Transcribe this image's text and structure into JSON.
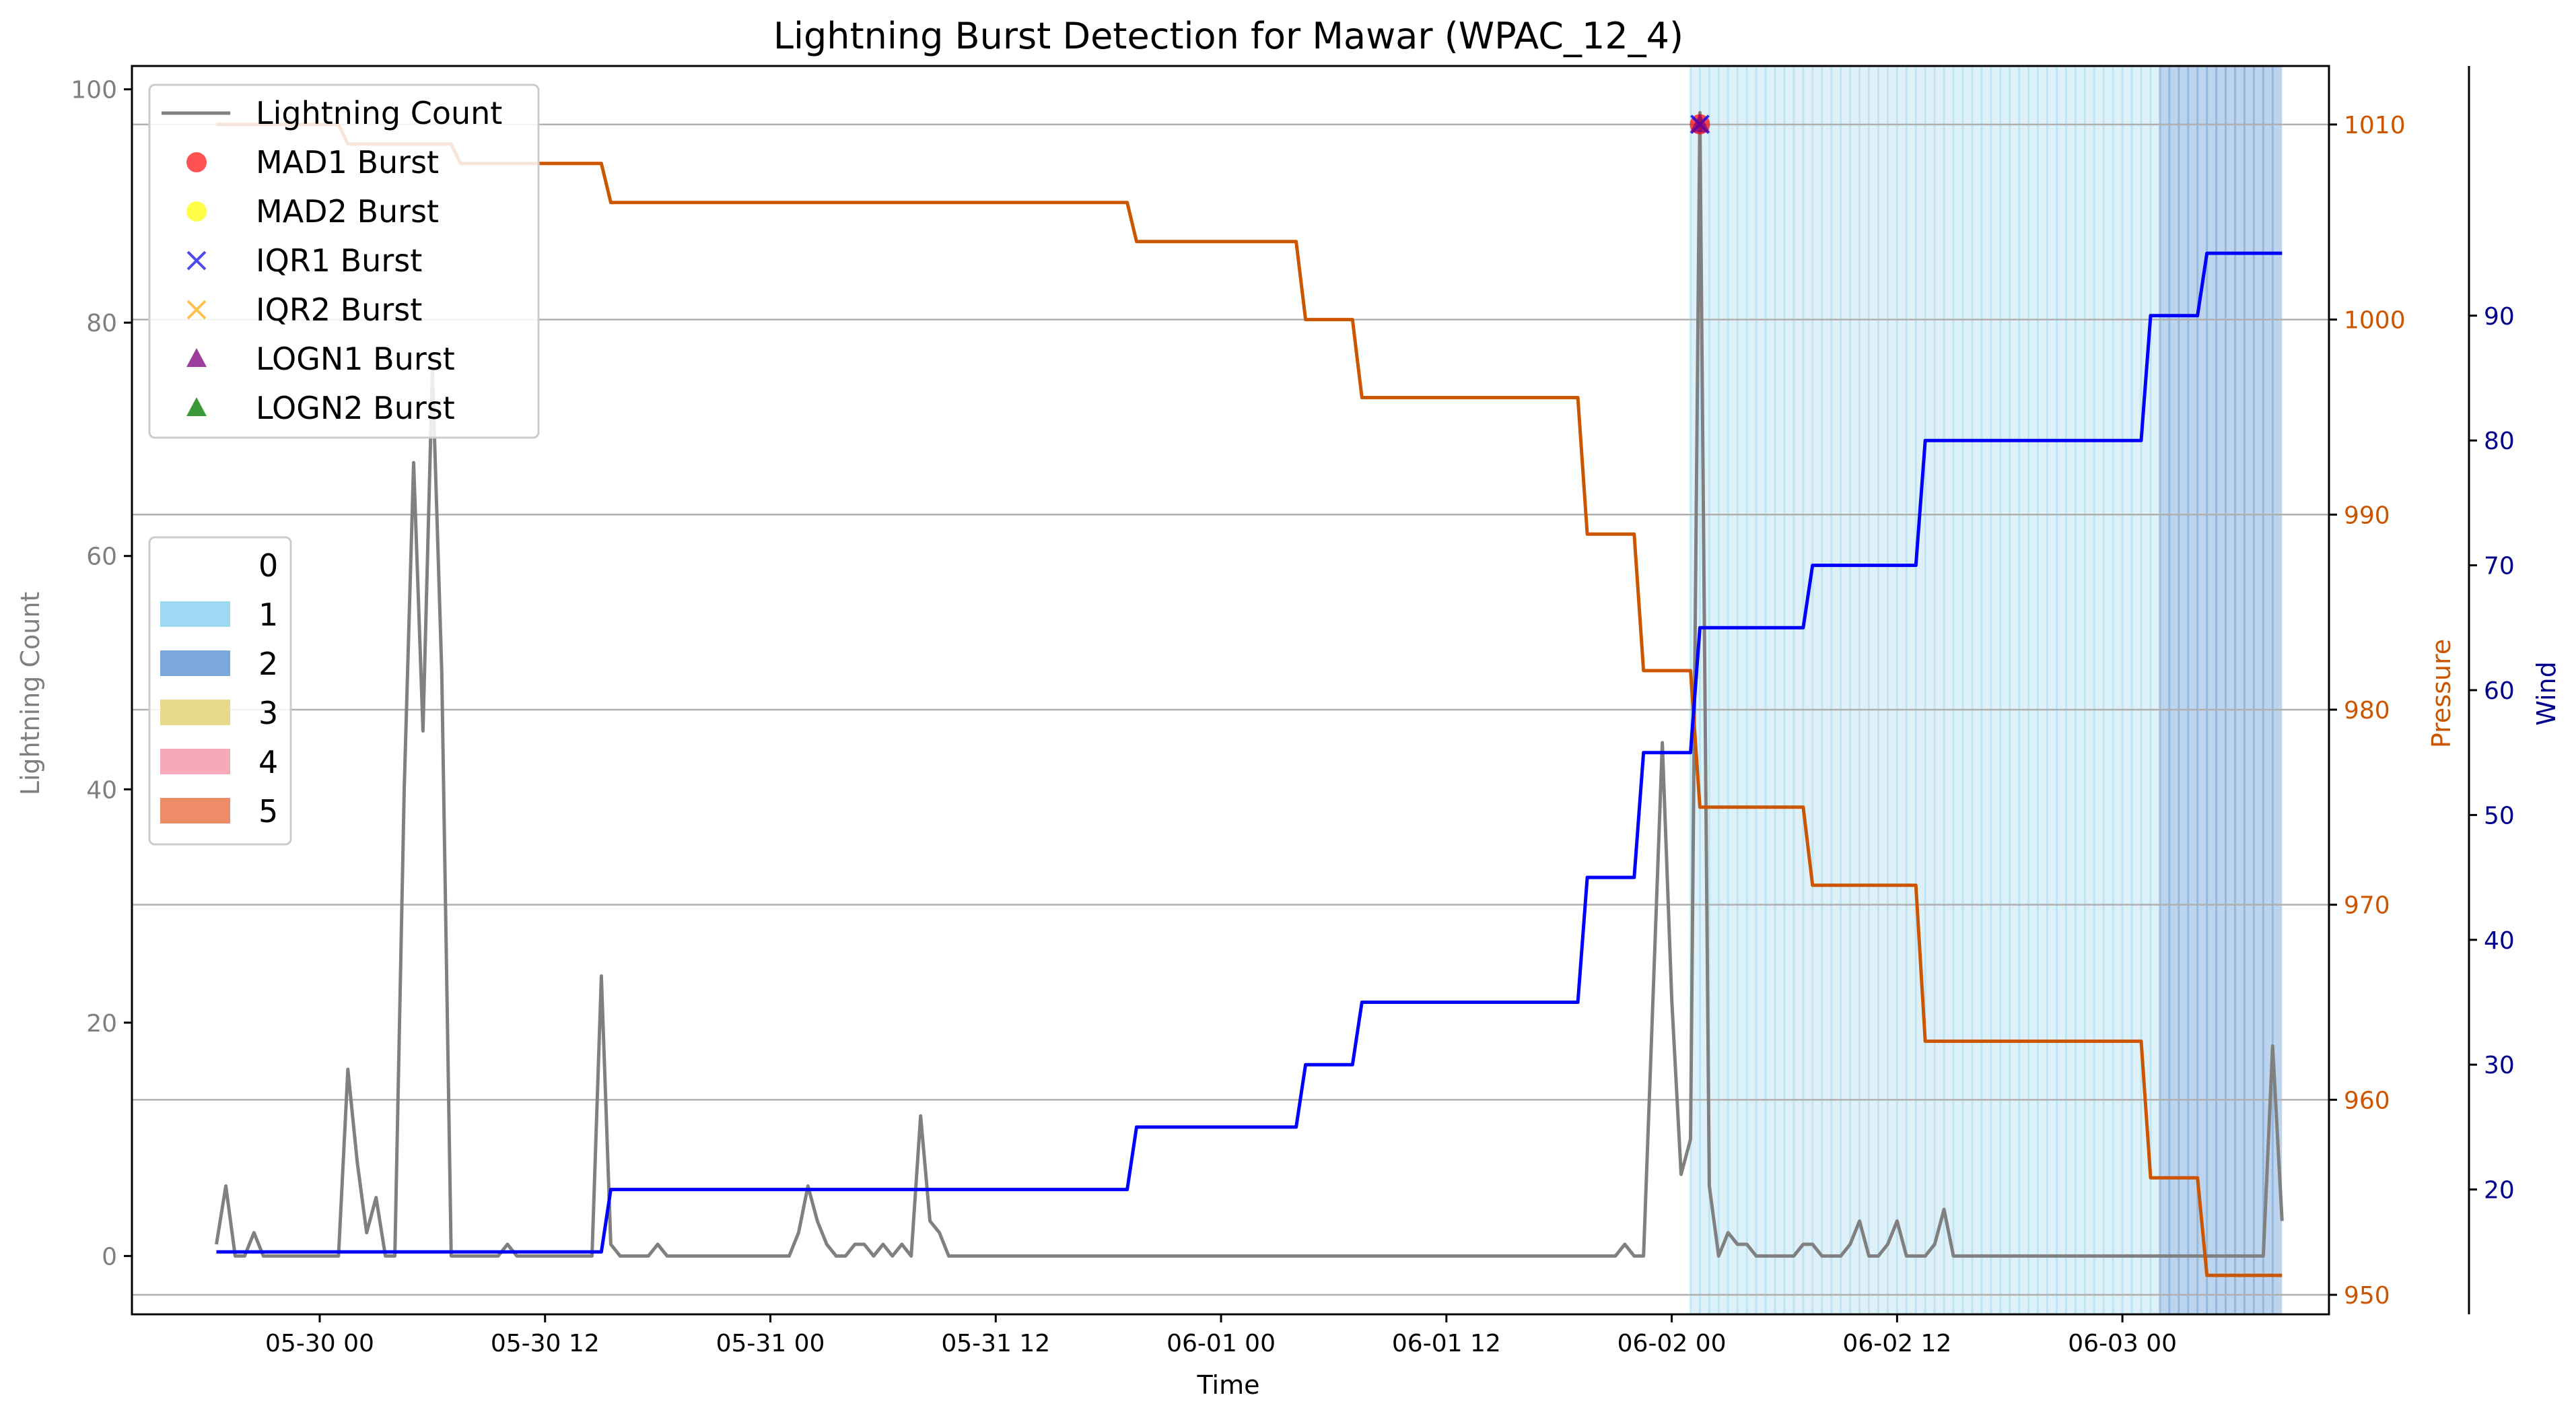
{
  "chart_data": {
    "type": "line",
    "title": "Lightning Burst Detection for Mawar (WPAC_12_4)",
    "xlabel": "Time",
    "x_ticks": [
      "05-30 00",
      "05-30 12",
      "05-31 00",
      "05-31 12",
      "06-01 00",
      "06-01 12",
      "06-02 00",
      "06-02 12",
      "06-03 00"
    ],
    "axes": {
      "left": {
        "label": "Lightning Count",
        "ticks": [
          0,
          20,
          40,
          60,
          80,
          100
        ],
        "ylim": [
          -5,
          102
        ],
        "color": "#7f7f7f"
      },
      "right1": {
        "label": "Pressure",
        "ticks": [
          950,
          960,
          970,
          980,
          990,
          1000,
          1010
        ],
        "ylim": [
          949,
          1013
        ],
        "color": "#cc5500"
      },
      "right2": {
        "label": "Wind",
        "ticks": [
          20,
          30,
          40,
          50,
          60,
          70,
          80,
          90
        ],
        "ylim": [
          10,
          110
        ],
        "color": "#00008b"
      }
    },
    "grid": true,
    "x_unit": "hours since 05-30 00",
    "xlim": [
      -10,
      107
    ],
    "series": [
      {
        "name": "Lightning Count",
        "axis": "left",
        "color": "#808080",
        "points": [
          [
            -5.5,
            1
          ],
          [
            -5,
            6
          ],
          [
            -4.5,
            0
          ],
          [
            -4,
            0
          ],
          [
            -3.5,
            2
          ],
          [
            -3,
            0
          ],
          [
            1,
            0
          ],
          [
            1.5,
            16
          ],
          [
            2,
            8
          ],
          [
            2.5,
            2
          ],
          [
            3,
            5
          ],
          [
            3.5,
            0
          ],
          [
            4,
            0
          ],
          [
            4.5,
            40
          ],
          [
            5,
            68
          ],
          [
            5.5,
            45
          ],
          [
            6,
            76
          ],
          [
            6.5,
            50
          ],
          [
            7,
            0
          ],
          [
            9,
            0
          ],
          [
            9.5,
            0
          ],
          [
            10,
            1
          ],
          [
            10.5,
            0
          ],
          [
            14,
            0
          ],
          [
            14.5,
            0
          ],
          [
            15,
            24
          ],
          [
            15.5,
            1
          ],
          [
            16,
            0
          ],
          [
            17.5,
            0
          ],
          [
            18,
            1
          ],
          [
            18.5,
            0
          ],
          [
            25,
            0
          ],
          [
            25.5,
            2
          ],
          [
            26,
            6
          ],
          [
            26.5,
            3
          ],
          [
            27,
            1
          ],
          [
            27.5,
            0
          ],
          [
            28,
            0
          ],
          [
            28.5,
            1
          ],
          [
            29,
            1
          ],
          [
            29.5,
            0
          ],
          [
            30,
            1
          ],
          [
            30.5,
            0
          ],
          [
            31,
            1
          ],
          [
            31.5,
            0
          ],
          [
            32,
            12
          ],
          [
            32.5,
            3
          ],
          [
            33,
            2
          ],
          [
            33.5,
            0
          ],
          [
            51,
            0
          ],
          [
            69,
            0
          ],
          [
            69.5,
            1
          ],
          [
            70,
            0
          ],
          [
            70.5,
            0
          ],
          [
            71,
            22
          ],
          [
            71.5,
            44
          ],
          [
            72,
            22
          ],
          [
            72.5,
            7
          ],
          [
            73,
            10
          ],
          [
            73.5,
            98
          ],
          [
            74,
            6
          ],
          [
            74.5,
            0
          ],
          [
            75,
            2
          ],
          [
            75.5,
            1
          ],
          [
            76,
            1
          ],
          [
            76.5,
            0
          ],
          [
            78.5,
            0
          ],
          [
            79,
            1
          ],
          [
            79.5,
            1
          ],
          [
            80,
            0
          ],
          [
            81,
            0
          ],
          [
            81.5,
            1
          ],
          [
            82,
            3
          ],
          [
            82.5,
            0
          ],
          [
            83,
            0
          ],
          [
            83.5,
            1
          ],
          [
            84,
            3
          ],
          [
            84.5,
            0
          ],
          [
            85.5,
            0
          ],
          [
            86,
            1
          ],
          [
            86.5,
            4
          ],
          [
            87,
            0
          ],
          [
            103.5,
            0
          ],
          [
            104,
            18
          ],
          [
            104.5,
            3
          ]
        ]
      },
      {
        "name": "",
        "axis": "right1",
        "color": "#cc5500",
        "points": [
          [
            -5.5,
            1010
          ],
          [
            1,
            1010
          ],
          [
            1.5,
            1009
          ],
          [
            7,
            1009
          ],
          [
            7.5,
            1008
          ],
          [
            15,
            1008
          ],
          [
            15.5,
            1006
          ],
          [
            43,
            1006
          ],
          [
            43.5,
            1004
          ],
          [
            52,
            1004
          ],
          [
            52.5,
            1000
          ],
          [
            55,
            1000
          ],
          [
            55.5,
            996
          ],
          [
            67,
            996
          ],
          [
            67.5,
            989
          ],
          [
            70,
            989
          ],
          [
            70.5,
            982
          ],
          [
            73,
            982
          ],
          [
            73.5,
            975
          ],
          [
            79,
            975
          ],
          [
            79.5,
            971
          ],
          [
            85,
            971
          ],
          [
            85.5,
            963
          ],
          [
            97,
            963
          ],
          [
            97.5,
            956
          ],
          [
            100,
            956
          ],
          [
            100.5,
            951
          ],
          [
            104.5,
            951
          ]
        ]
      },
      {
        "name": "",
        "axis": "right2",
        "color": "#0000ff",
        "points": [
          [
            -5.5,
            15
          ],
          [
            15,
            15
          ],
          [
            15.5,
            20
          ],
          [
            43,
            20
          ],
          [
            43.5,
            25
          ],
          [
            52,
            25
          ],
          [
            52.5,
            30
          ],
          [
            55,
            30
          ],
          [
            55.5,
            35
          ],
          [
            67,
            35
          ],
          [
            67.5,
            45
          ],
          [
            70,
            45
          ],
          [
            70.5,
            55
          ],
          [
            73,
            55
          ],
          [
            73.5,
            65
          ],
          [
            79,
            65
          ],
          [
            79.5,
            70
          ],
          [
            85,
            70
          ],
          [
            85.5,
            80
          ],
          [
            97,
            80
          ],
          [
            97.5,
            90
          ],
          [
            100,
            90
          ],
          [
            100.5,
            95
          ],
          [
            104.5,
            95
          ]
        ]
      }
    ],
    "bursts": [
      {
        "name": "MAD1 Burst",
        "marker": "circle",
        "color": "#ff0000",
        "x": 73.5,
        "y": 97
      },
      {
        "name": "IQR1 Burst",
        "marker": "x",
        "color": "#0000ff",
        "x": 73.5,
        "y": 97
      },
      {
        "name": "LOGN1 Burst",
        "marker": "triangle",
        "color": "#800080",
        "x": 73.5,
        "y": 97
      }
    ],
    "shaded_regions": [
      {
        "category": "1",
        "start": 73,
        "end": 98,
        "color": "#87ceeb"
      },
      {
        "category": "2",
        "start": 98,
        "end": 104.5,
        "color": "#6a9fd8"
      }
    ],
    "legend_top": {
      "placement": "top-left",
      "entries": [
        {
          "label": "Lightning Count",
          "marker": "line",
          "color": "#808080"
        },
        {
          "label": "MAD1 Burst",
          "marker": "circle",
          "color": "#ff4040"
        },
        {
          "label": "MAD2 Burst",
          "marker": "circle",
          "color": "#ffff33"
        },
        {
          "label": "IQR1 Burst",
          "marker": "x",
          "color": "#4b4bf0"
        },
        {
          "label": "IQR2 Burst",
          "marker": "x",
          "color": "#ffc04d"
        },
        {
          "label": "LOGN1 Burst",
          "marker": "triangle",
          "color": "#9b3d9b"
        },
        {
          "label": "LOGN2 Burst",
          "marker": "triangle",
          "color": "#3a9a3a"
        }
      ]
    },
    "legend_categories": {
      "placement": "center-left",
      "entries": [
        {
          "label": "0",
          "color": "#ffffff"
        },
        {
          "label": "1",
          "color": "#9fd8f2"
        },
        {
          "label": "2",
          "color": "#7aa8da"
        },
        {
          "label": "3",
          "color": "#e8da8c"
        },
        {
          "label": "4",
          "color": "#f6a9b8"
        },
        {
          "label": "5",
          "color": "#ef8c68"
        }
      ]
    }
  }
}
